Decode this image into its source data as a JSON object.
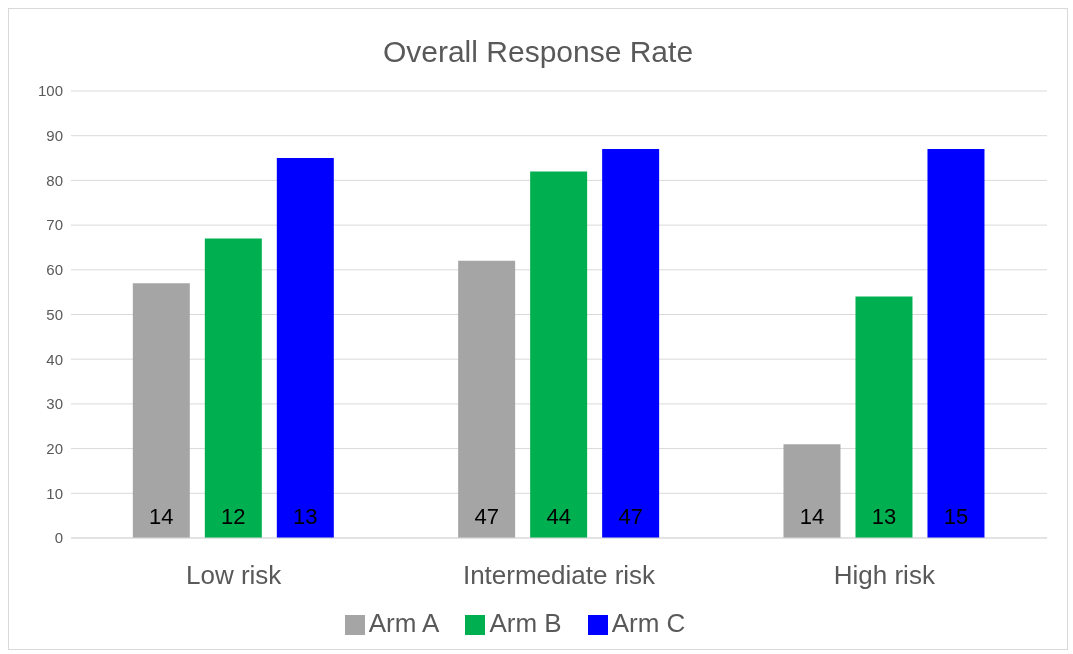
{
  "chart_data": {
    "type": "bar",
    "title": "Overall Response Rate",
    "categories": [
      "Low risk",
      "Intermediate risk",
      "High risk"
    ],
    "series": [
      {
        "name": "Arm A",
        "color": "#a5a5a5",
        "values": [
          57,
          62,
          21
        ]
      },
      {
        "name": "Arm B",
        "color": "#00b050",
        "values": [
          67,
          82,
          54
        ]
      },
      {
        "name": "Arm C",
        "color": "#0000ff",
        "values": [
          85,
          87,
          87
        ]
      }
    ],
    "annotations": [
      "14",
      "12",
      "13",
      "47",
      "44",
      "47",
      "14",
      "13",
      "15"
    ],
    "ylim": [
      0,
      100
    ],
    "yticks": [
      0,
      10,
      20,
      30,
      40,
      50,
      60,
      70,
      80,
      90,
      100
    ],
    "grid": "y",
    "legend": "bottom"
  }
}
